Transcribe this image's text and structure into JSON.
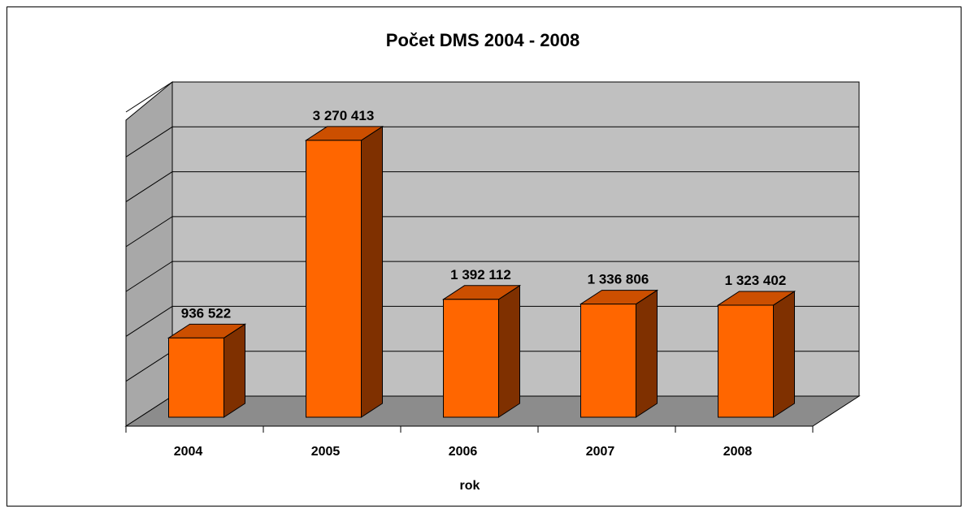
{
  "chart_data": {
    "type": "bar",
    "title": "Počet DMS 2004 - 2008",
    "xlabel": "rok",
    "ylabel": "",
    "categories": [
      "2004",
      "2005",
      "2006",
      "2007",
      "2008"
    ],
    "values": [
      936522,
      3270413,
      1392112,
      1336806,
      1323402
    ],
    "data_labels": [
      "936 522",
      "3 270 413",
      "1 392 112",
      "1 336 806",
      "1 323 402"
    ],
    "ylim": [
      0,
      3500000
    ],
    "grid": true,
    "legend": "none",
    "style": "3d-column",
    "colors": {
      "bar_front": "#FF6600",
      "bar_top": "#CC4F00",
      "bar_side": "#7F3000",
      "plot_wall": "#C0C0C0",
      "plot_side_wall": "#A8A8A8",
      "floor": "#8C8C8C",
      "grid": "#000000"
    }
  }
}
